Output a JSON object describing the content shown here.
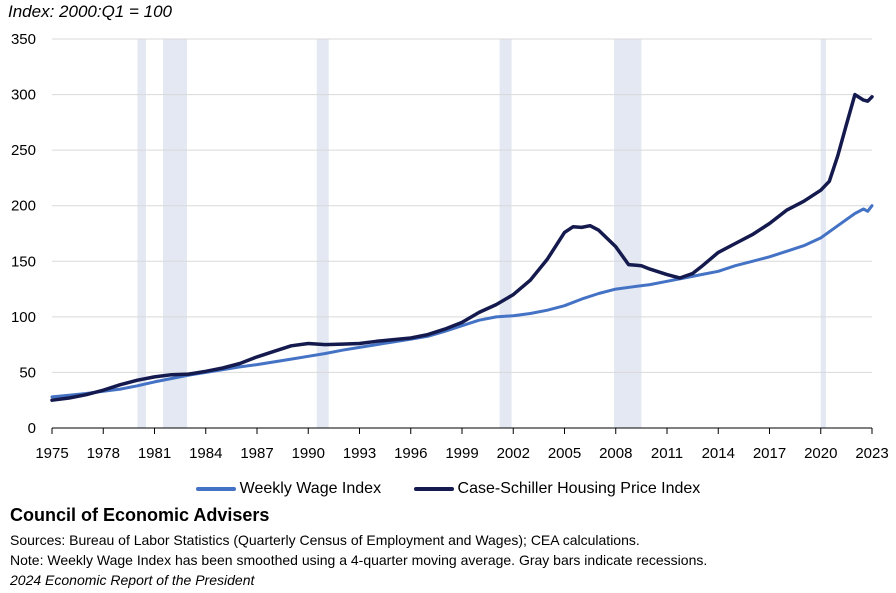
{
  "chart_data": {
    "type": "line",
    "index_label": "Index: 2000:Q1 = 100",
    "xlim": [
      1975,
      2023
    ],
    "ylim": [
      0,
      350
    ],
    "x_ticks": [
      "1975",
      "1978",
      "1981",
      "1984",
      "1987",
      "1990",
      "1993",
      "1996",
      "1999",
      "2002",
      "2005",
      "2008",
      "2011",
      "2014",
      "2017",
      "2020",
      "2023"
    ],
    "y_ticks": [
      "0",
      "50",
      "100",
      "150",
      "200",
      "250",
      "300",
      "350"
    ],
    "recessions": [
      [
        1980.0,
        1980.5
      ],
      [
        1981.5,
        1982.9
      ],
      [
        1990.5,
        1991.2
      ],
      [
        2001.2,
        2001.9
      ],
      [
        2007.9,
        2009.5
      ],
      [
        2020.0,
        2020.3
      ]
    ],
    "series": [
      {
        "name": "Weekly Wage Index",
        "color": "#4472c4",
        "points": [
          [
            1975,
            28
          ],
          [
            1976,
            29.5
          ],
          [
            1977,
            31
          ],
          [
            1978,
            33
          ],
          [
            1979,
            35
          ],
          [
            1980,
            38
          ],
          [
            1981,
            41.5
          ],
          [
            1982,
            44.5
          ],
          [
            1983,
            47.5
          ],
          [
            1984,
            50
          ],
          [
            1985,
            52.5
          ],
          [
            1986,
            55
          ],
          [
            1987,
            57
          ],
          [
            1988,
            59.5
          ],
          [
            1989,
            62
          ],
          [
            1990,
            64.5
          ],
          [
            1991,
            67
          ],
          [
            1992,
            70
          ],
          [
            1993,
            72.5
          ],
          [
            1994,
            75
          ],
          [
            1995,
            77.5
          ],
          [
            1996,
            80
          ],
          [
            1997,
            82.5
          ],
          [
            1998,
            87
          ],
          [
            1999,
            92
          ],
          [
            2000,
            97
          ],
          [
            2001,
            100
          ],
          [
            2002,
            101
          ],
          [
            2003,
            103
          ],
          [
            2004,
            106
          ],
          [
            2005,
            110
          ],
          [
            2006,
            116
          ],
          [
            2007,
            121
          ],
          [
            2008,
            125
          ],
          [
            2009,
            127
          ],
          [
            2010,
            129
          ],
          [
            2011,
            132
          ],
          [
            2012,
            135
          ],
          [
            2013,
            138
          ],
          [
            2014,
            141
          ],
          [
            2015,
            146
          ],
          [
            2016,
            150
          ],
          [
            2017,
            154
          ],
          [
            2018,
            159
          ],
          [
            2019,
            164
          ],
          [
            2020,
            171
          ],
          [
            2021,
            182
          ],
          [
            2022,
            193
          ],
          [
            2022.5,
            197
          ],
          [
            2022.75,
            195
          ],
          [
            2023,
            200
          ]
        ]
      },
      {
        "name": "Case-Schiller Housing Price Index",
        "color": "#151a4e",
        "points": [
          [
            1975,
            25
          ],
          [
            1976,
            27
          ],
          [
            1977,
            30
          ],
          [
            1978,
            34
          ],
          [
            1979,
            39
          ],
          [
            1980,
            43
          ],
          [
            1981,
            46
          ],
          [
            1982,
            48
          ],
          [
            1983,
            48.5
          ],
          [
            1984,
            51
          ],
          [
            1985,
            54
          ],
          [
            1986,
            58
          ],
          [
            1987,
            64
          ],
          [
            1988,
            69
          ],
          [
            1989,
            74
          ],
          [
            1990,
            76
          ],
          [
            1991,
            75
          ],
          [
            1992,
            75.5
          ],
          [
            1993,
            76
          ],
          [
            1994,
            78
          ],
          [
            1995,
            79.5
          ],
          [
            1996,
            81
          ],
          [
            1997,
            84
          ],
          [
            1998,
            89
          ],
          [
            1999,
            95
          ],
          [
            2000,
            104
          ],
          [
            2001,
            111
          ],
          [
            2002,
            120
          ],
          [
            2003,
            133
          ],
          [
            2004,
            152
          ],
          [
            2005,
            176
          ],
          [
            2005.5,
            181
          ],
          [
            2006,
            180.5
          ],
          [
            2006.5,
            182
          ],
          [
            2007,
            178
          ],
          [
            2008,
            163
          ],
          [
            2008.75,
            147
          ],
          [
            2009.5,
            146
          ],
          [
            2010,
            143
          ],
          [
            2011,
            138
          ],
          [
            2011.75,
            135
          ],
          [
            2012.5,
            139
          ],
          [
            2013,
            145
          ],
          [
            2014,
            158
          ],
          [
            2015,
            166
          ],
          [
            2016,
            174
          ],
          [
            2017,
            184
          ],
          [
            2018,
            196
          ],
          [
            2019,
            204
          ],
          [
            2020,
            214
          ],
          [
            2020.5,
            222
          ],
          [
            2021,
            245
          ],
          [
            2021.5,
            273
          ],
          [
            2022,
            300
          ],
          [
            2022.5,
            295
          ],
          [
            2022.75,
            294
          ],
          [
            2023,
            298
          ]
        ]
      }
    ]
  },
  "legend": [
    "Weekly Wage Index",
    "Case-Schiller Housing Price Index"
  ],
  "footer": {
    "organization": "Council of Economic Advisers",
    "sources": "Sources: Bureau of Labor Statistics (Quarterly Census of Employment and Wages); CEA calculations.",
    "note": "Note: Weekly Wage Index has been smoothed using a 4-quarter moving average. Gray bars indicate recessions.",
    "report": "2024 Economic Report of the President"
  },
  "colors": {
    "grid": "#d9d9d9",
    "recession": "#e3e8f2",
    "axis": "#000000"
  }
}
